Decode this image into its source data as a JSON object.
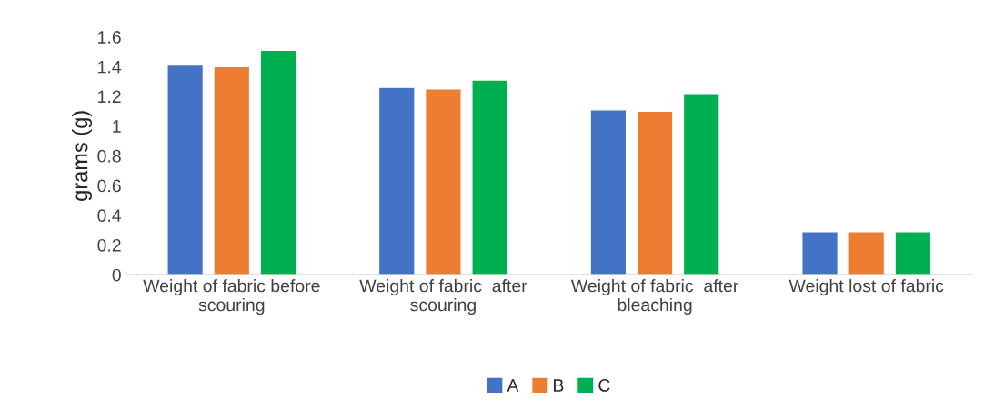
{
  "chart_data": {
    "type": "bar",
    "ylabel": "grams (g)",
    "categories": [
      "Weight of fabric before\nscouring",
      "Weight of fabric  after\nscouring",
      "Weight of fabric  after\nbleaching",
      "Weight lost of fabric"
    ],
    "series": [
      {
        "name": "A",
        "color": "#4472c4",
        "values": [
          1.41,
          1.26,
          1.11,
          0.29
        ]
      },
      {
        "name": "B",
        "color": "#ed7d31",
        "values": [
          1.4,
          1.25,
          1.1,
          0.29
        ]
      },
      {
        "name": "C",
        "color": "#00b050",
        "values": [
          1.51,
          1.31,
          1.22,
          0.29
        ]
      }
    ],
    "ylim": [
      0,
      1.6
    ],
    "yticks": [
      0,
      0.2,
      0.4,
      0.6,
      0.8,
      1,
      1.2,
      1.4,
      1.6
    ],
    "grid": false,
    "legend": "bottom"
  }
}
